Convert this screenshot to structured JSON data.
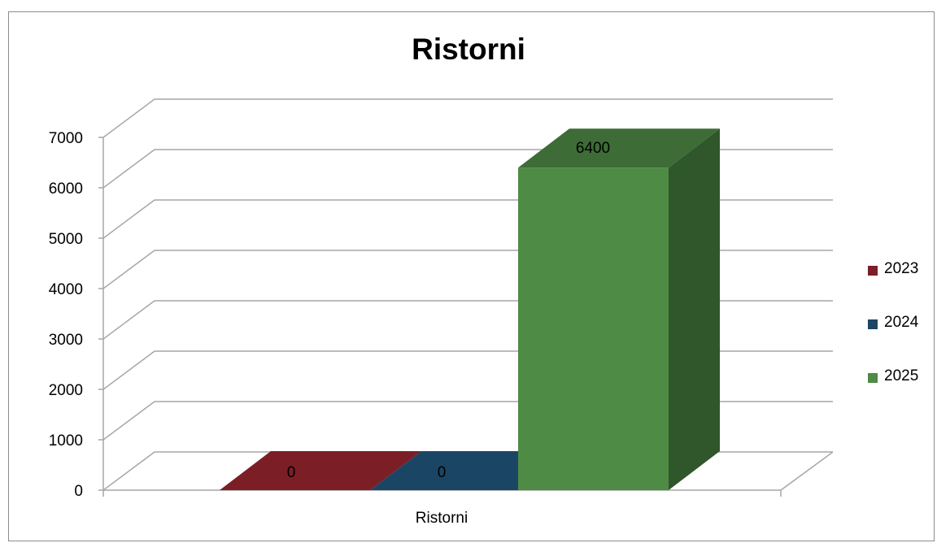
{
  "chart_data": {
    "type": "bar",
    "title": "Ristorni",
    "categories": [
      "Ristorni"
    ],
    "series": [
      {
        "name": "2023",
        "values": [
          0
        ],
        "color": "#7b1e26"
      },
      {
        "name": "2024",
        "values": [
          0
        ],
        "color": "#1b4564"
      },
      {
        "name": "2025",
        "values": [
          6400
        ],
        "color": "#4e8b45"
      }
    ],
    "yticks": [
      "0",
      "1000",
      "2000",
      "3000",
      "4000",
      "5000",
      "6000",
      "7000"
    ],
    "ylim": [
      0,
      7000
    ],
    "data_labels": [
      "0",
      "0",
      "6400"
    ],
    "grid": true,
    "legend_position": "right",
    "style": "3d-clustered-column"
  }
}
